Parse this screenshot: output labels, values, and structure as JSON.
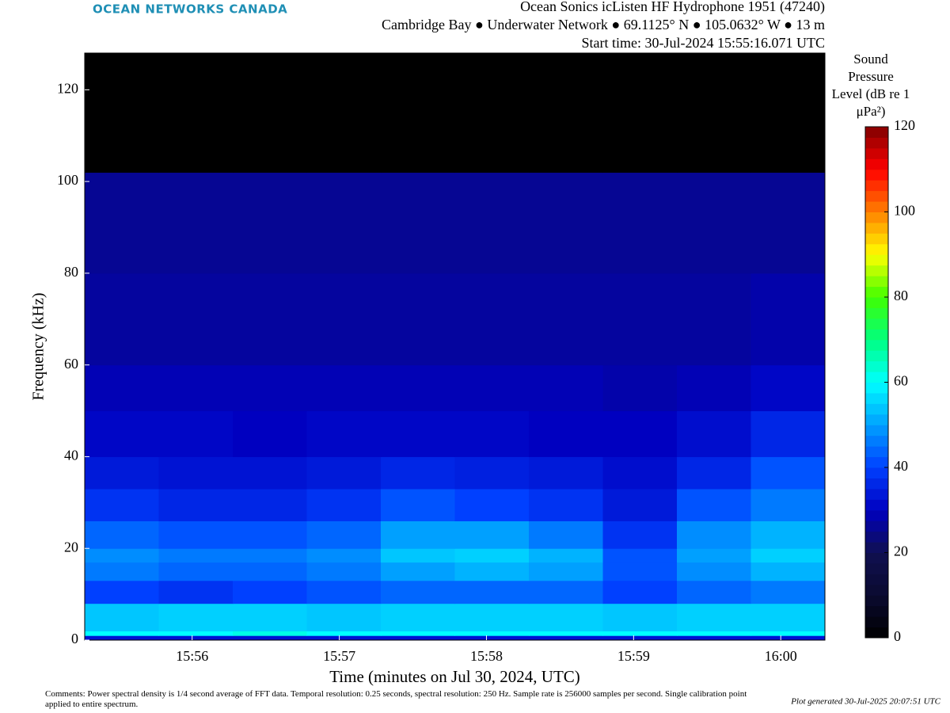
{
  "brand": "OCEAN NETWORKS CANADA",
  "chart_data": {
    "type": "spectrogram",
    "title_lines": [
      "Ocean Sonics icListen HF Hydrophone 1951 (47240)",
      "Cambridge Bay ● Underwater Network ● 69.1125° N ● 105.0632° W ● 13 m",
      "Start time: 30-Jul-2024 15:55:16.071 UTC"
    ],
    "xlabel": "Time (minutes on Jul 30, 2024, UTC)",
    "ylabel": "Frequency (kHz)",
    "colorbar_label": "Sound Pressure Level (dB re 1 μPa²)",
    "xlim": [
      955.27,
      960.3
    ],
    "xticks": [
      {
        "value": 956,
        "label": "15:56"
      },
      {
        "value": 957,
        "label": "15:57"
      },
      {
        "value": 958,
        "label": "15:58"
      },
      {
        "value": 959,
        "label": "15:59"
      },
      {
        "value": 960,
        "label": "16:00"
      }
    ],
    "ylim": [
      0,
      128
    ],
    "yticks": [
      0,
      20,
      40,
      60,
      80,
      100,
      120
    ],
    "clim": [
      0,
      120
    ],
    "cticks": [
      0,
      20,
      40,
      60,
      80,
      100,
      120
    ],
    "colormap": [
      "#000000",
      "#0a0a30",
      "#101050",
      "#0000c0",
      "#0040ff",
      "#00a0ff",
      "#00ffff",
      "#00ff80",
      "#40ff00",
      "#ffff00",
      "#ff8000",
      "#ff0000",
      "#800000"
    ],
    "x_edges": [
      955.27,
      955.773,
      956.276,
      956.779,
      957.282,
      957.785,
      958.288,
      958.791,
      959.294,
      959.797,
      960.3
    ],
    "y_edges": [
      0,
      1,
      2,
      8,
      13,
      17,
      20,
      26,
      33,
      40,
      50,
      60,
      80,
      102,
      128
    ],
    "values": [
      [
        33,
        33,
        33,
        33,
        33,
        33,
        33,
        33,
        33,
        33
      ],
      [
        60,
        60,
        62,
        60,
        60,
        60,
        60,
        60,
        60,
        60
      ],
      [
        54,
        55,
        55,
        54,
        55,
        55,
        55,
        54,
        55,
        55
      ],
      [
        40,
        38,
        40,
        42,
        44,
        44,
        44,
        40,
        44,
        46
      ],
      [
        46,
        44,
        44,
        46,
        50,
        52,
        50,
        42,
        48,
        52
      ],
      [
        48,
        46,
        46,
        48,
        54,
        55,
        52,
        42,
        50,
        55
      ],
      [
        44,
        42,
        42,
        44,
        50,
        50,
        46,
        38,
        48,
        52
      ],
      [
        38,
        36,
        36,
        38,
        42,
        40,
        38,
        34,
        42,
        46
      ],
      [
        34,
        33,
        33,
        34,
        36,
        35,
        34,
        32,
        36,
        42
      ],
      [
        31,
        31,
        30,
        31,
        31,
        31,
        30,
        30,
        32,
        36
      ],
      [
        29,
        29,
        29,
        29,
        29,
        29,
        29,
        28,
        29,
        31
      ],
      [
        27,
        27,
        27,
        27,
        27,
        27,
        27,
        27,
        27,
        28
      ],
      [
        26,
        26,
        26,
        26,
        26,
        26,
        26,
        26,
        26,
        26
      ],
      [
        0,
        0,
        0,
        0,
        0,
        0,
        0,
        0,
        0,
        0
      ]
    ]
  },
  "comments": "Comments: Power spectral density is 1/4 second average of FFT data. Temporal resolution: 0.25 seconds, spectral resolution: 250 Hz. Sample rate is 256000 samples per second. Single calibration point applied to entire spectrum.",
  "generated": "Plot generated 30-Jul-2025 20:07:51 UTC"
}
